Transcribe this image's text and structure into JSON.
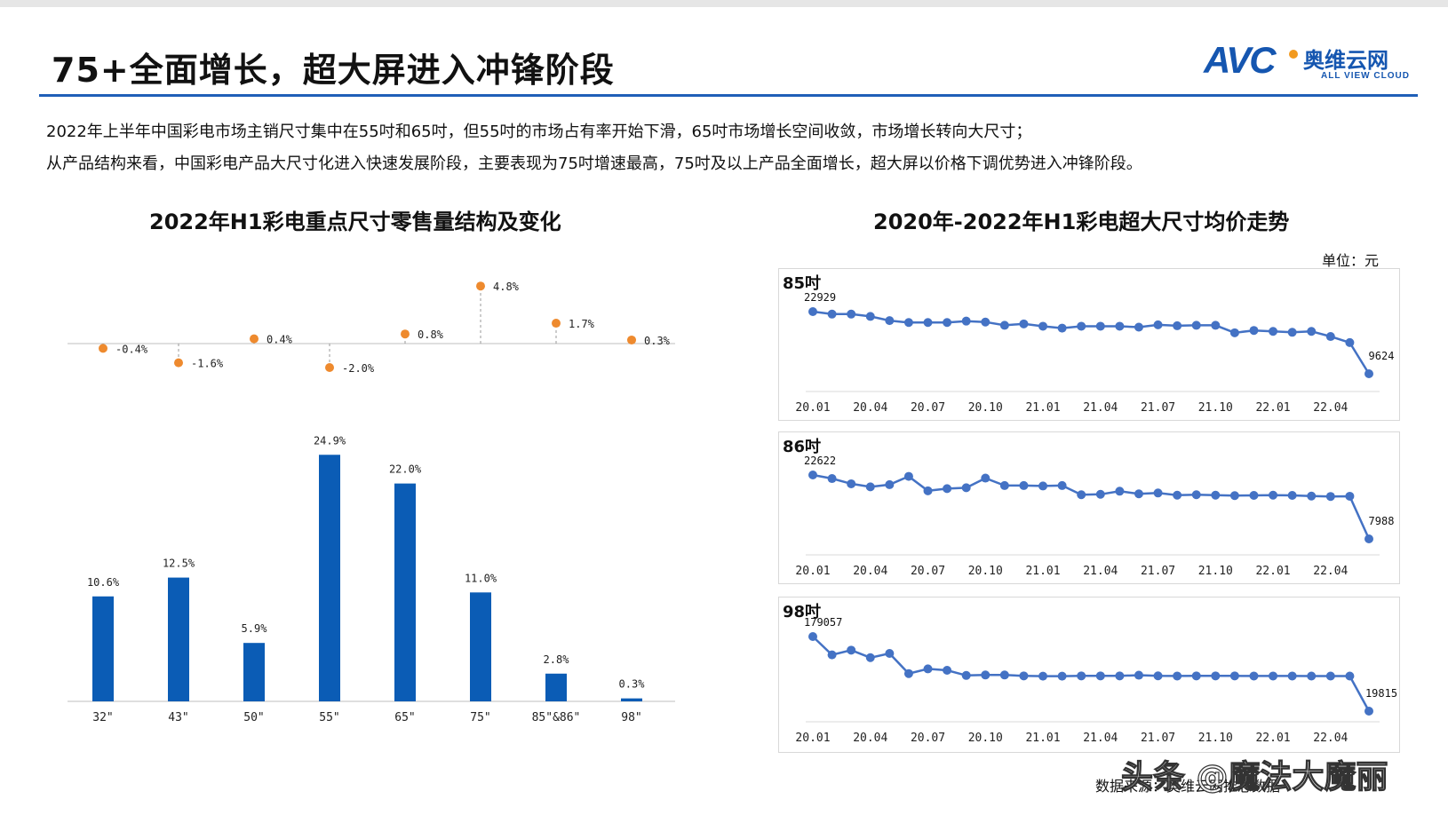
{
  "header": {
    "title": "75+全面增长，超大屏进入冲锋阶段",
    "logo": {
      "mark": "AVC",
      "name_cn": "奥维云网",
      "name_en": "ALL VIEW CLOUD",
      "colors": {
        "brand": "#1556b0",
        "accent": "#f29a1f"
      }
    }
  },
  "summary": {
    "line1": "2022年上半年中国彩电市场主销尺寸集中在55吋和65吋，但55吋的市场占有率开始下滑，65吋市场增长空间收敛，市场增长转向大尺寸；",
    "line2": "从产品结构来看，中国彩电产品大尺寸化进入快速发展阶段，主要表现为75吋增速最高，75吋及以上产品全面增长，超大屏以价格下调优势进入冲锋阶段。"
  },
  "left_chart_title": "2022年H1彩电重点尺寸零售量结构及变化",
  "right_chart_title": "2020年-2022年H1彩电超大尺寸均价走势",
  "right_unit": "单位：元",
  "source": "数据来源：奥维云网推总数据",
  "watermark": "头条 @魔法大魔丽",
  "chart_data": [
    {
      "type": "bar",
      "categories": [
        "32\"",
        "43\"",
        "50\"",
        "55\"",
        "65\"",
        "75\"",
        "85\"&86\"",
        "98\""
      ],
      "series": [
        {
          "values": [
            10.6,
            12.5,
            5.9,
            24.9,
            22.0,
            11.0,
            2.8,
            0.3
          ],
          "labels": [
            "10.6%",
            "12.5%",
            "5.9%",
            "24.9%",
            "22.0%",
            "11.0%",
            "2.8%",
            "0.3%"
          ],
          "color": "#0b5cb5"
        }
      ],
      "ylim": [
        0,
        26
      ]
    },
    {
      "type": "scatter",
      "categories": [
        "32\"",
        "43\"",
        "50\"",
        "55\"",
        "65\"",
        "75\"",
        "85\"&86\"",
        "98\""
      ],
      "series": [
        {
          "values": [
            -0.4,
            -1.6,
            0.4,
            -2.0,
            0.8,
            4.8,
            1.7,
            0.3
          ],
          "labels": [
            "-0.4%",
            "-1.6%",
            "0.4%",
            "-2.0%",
            "0.8%",
            "4.8%",
            "1.7%",
            "0.3%"
          ],
          "color": "#ee8a2e"
        }
      ]
    },
    {
      "type": "line",
      "panel_label": "85吋",
      "x_ticks": [
        "20.01",
        "20.04",
        "20.07",
        "20.10",
        "21.01",
        "21.04",
        "21.07",
        "21.10",
        "22.01",
        "22.04"
      ],
      "series": [
        {
          "values": [
            22929,
            22400,
            22400,
            21900,
            21000,
            20600,
            20600,
            20600,
            20900,
            20700,
            20000,
            20300,
            19800,
            19400,
            19800,
            19800,
            19800,
            19600,
            20100,
            19900,
            20000,
            20000,
            18400,
            18900,
            18700,
            18500,
            18700,
            17600,
            16300,
            9624
          ],
          "start_label": "22929",
          "end_label": "9624",
          "color": "#4472c4"
        }
      ]
    },
    {
      "type": "line",
      "panel_label": "86吋",
      "x_ticks": [
        "20.01",
        "20.04",
        "20.07",
        "20.10",
        "21.01",
        "21.04",
        "21.07",
        "21.10",
        "22.01",
        "22.04"
      ],
      "series": [
        {
          "values": [
            22622,
            21800,
            20600,
            19900,
            20400,
            22300,
            19000,
            19500,
            19700,
            21900,
            20200,
            20200,
            20100,
            20200,
            18100,
            18200,
            18900,
            18300,
            18500,
            18000,
            18100,
            18000,
            17900,
            17950,
            18000,
            17950,
            17800,
            17700,
            17750,
            7988
          ],
          "start_label": "22622",
          "end_label": "7988",
          "color": "#4472c4"
        }
      ]
    },
    {
      "type": "line",
      "panel_label": "98吋",
      "x_ticks": [
        "20.01",
        "20.04",
        "20.07",
        "20.10",
        "21.01",
        "21.04",
        "21.07",
        "21.10",
        "22.01",
        "22.04"
      ],
      "series": [
        {
          "values": [
            179057,
            140000,
            150000,
            134000,
            143000,
            100000,
            110000,
            107000,
            96000,
            97000,
            97000,
            95000,
            94500,
            94500,
            95000,
            95000,
            95000,
            96500,
            95200,
            94800,
            95000,
            95000,
            95000,
            94800,
            94800,
            94800,
            94700,
            94700,
            94700,
            19815
          ],
          "start_label": "179057",
          "end_label": "19815",
          "color": "#4472c4"
        }
      ]
    }
  ]
}
